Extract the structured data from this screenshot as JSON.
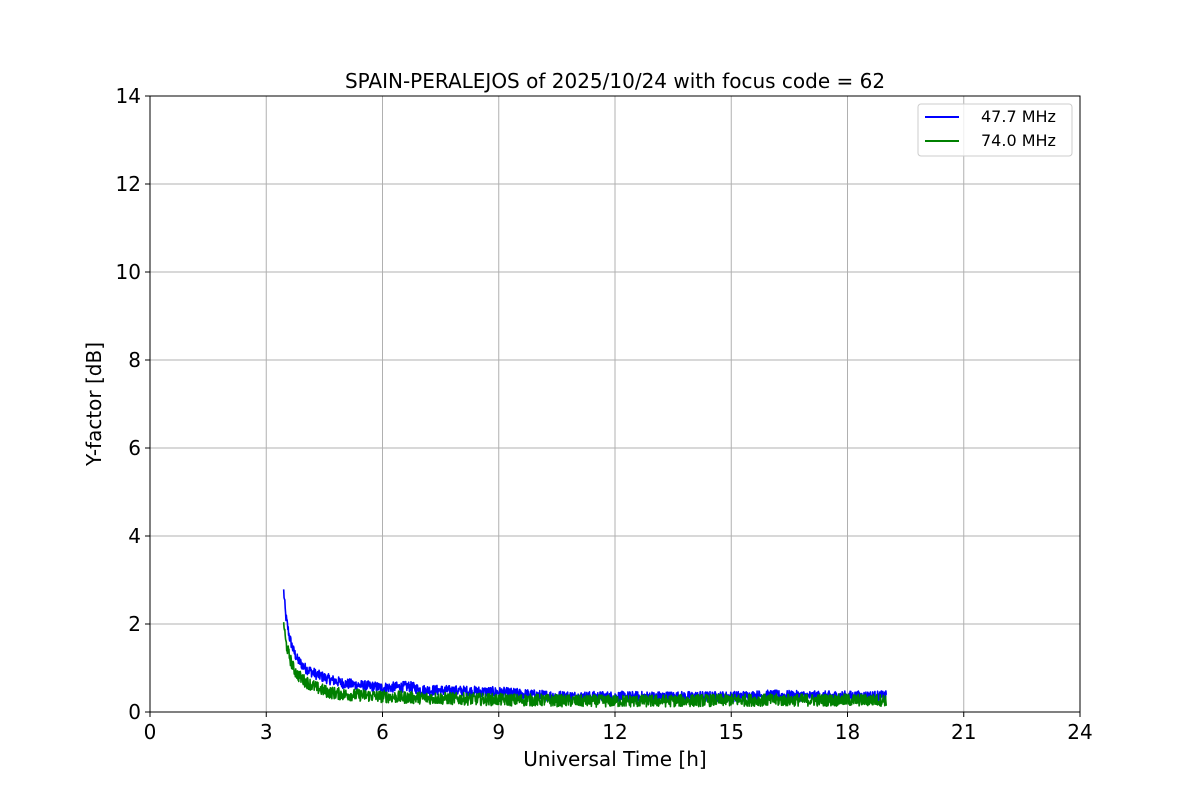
{
  "chart_data": {
    "type": "line",
    "title": "SPAIN-PERALEJOS of 2025/10/24 with focus code = 62",
    "xlabel": "Universal Time [h]",
    "ylabel": "Y-factor [dB]",
    "xlim": [
      0,
      24
    ],
    "ylim": [
      0,
      14
    ],
    "xticks": [
      0,
      3,
      6,
      9,
      12,
      15,
      18,
      21,
      24
    ],
    "yticks": [
      0,
      2,
      4,
      6,
      8,
      10,
      12,
      14
    ],
    "grid": true,
    "legend_position": "top-right",
    "series": [
      {
        "name": "47.7 MHz",
        "color": "#0000ff",
        "x": [
          3.45,
          3.5,
          3.6,
          3.7,
          3.8,
          4.0,
          4.3,
          4.6,
          5.0,
          5.5,
          6.0,
          6.7,
          7.0,
          8.0,
          9.0,
          10.0,
          11.0,
          12.0,
          13.0,
          14.0,
          15.0,
          16.0,
          17.0,
          18.0,
          19.0
        ],
        "y": [
          2.75,
          2.2,
          1.7,
          1.4,
          1.2,
          1.0,
          0.85,
          0.75,
          0.65,
          0.6,
          0.55,
          0.58,
          0.5,
          0.48,
          0.45,
          0.38,
          0.35,
          0.35,
          0.35,
          0.35,
          0.35,
          0.38,
          0.36,
          0.36,
          0.36
        ]
      },
      {
        "name": "74.0 MHz",
        "color": "#008000",
        "x": [
          3.45,
          3.5,
          3.6,
          3.7,
          3.8,
          4.0,
          4.3,
          4.6,
          5.0,
          5.5,
          6.0,
          7.0,
          8.0,
          9.0,
          10.0,
          11.0,
          12.0,
          13.0,
          14.0,
          15.0,
          16.0,
          17.0,
          18.0,
          19.0
        ],
        "y": [
          2.05,
          1.6,
          1.25,
          1.0,
          0.85,
          0.7,
          0.55,
          0.45,
          0.4,
          0.38,
          0.35,
          0.32,
          0.3,
          0.28,
          0.27,
          0.25,
          0.25,
          0.25,
          0.26,
          0.27,
          0.27,
          0.27,
          0.27,
          0.27
        ]
      }
    ]
  }
}
